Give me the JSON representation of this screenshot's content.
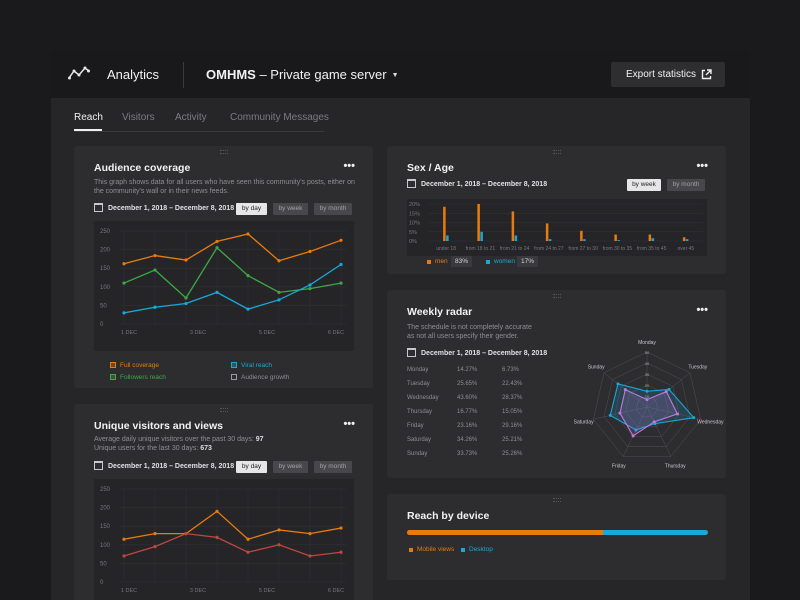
{
  "header": {
    "app_title": "Analytics",
    "project_name": "OMHMS",
    "project_suffix": " – Private game server",
    "export_label": "Export statistics"
  },
  "tabs": [
    {
      "label": "Reach",
      "active": true
    },
    {
      "label": "Visitors",
      "active": false
    },
    {
      "label": "Activity",
      "active": false
    },
    {
      "label": "Community Messages",
      "active": false
    }
  ],
  "colors": {
    "orange": "#e77b0e",
    "blue": "#1aa7d9",
    "green": "#3ea846",
    "light_blue": "#1aa7d9",
    "red": "#c0473e"
  },
  "audience": {
    "title": "Audience coverage",
    "menu_icon": "more-dots-icon",
    "description": "This graph shows data for all users who have seen this community's posts, either on the community's wall or in their news feeds.",
    "date_range": "December 1, 2018 – December 8, 2018",
    "periods": [
      "by day",
      "by week",
      "by month"
    ],
    "active_period": "by day",
    "legend": [
      "Full coverage",
      "Viral reach",
      "Followers reach",
      "Audience growth"
    ]
  },
  "unique": {
    "title": "Unique visitors and views",
    "desc_line1": "Average daily unique visitors over the past 30 days: ",
    "desc_val1": "97",
    "desc_line2": "Unique users for the last 30 days: ",
    "desc_val2": "673",
    "date_range": "December 1, 2018 – December 8, 2018",
    "periods": [
      "by day",
      "by week",
      "by month"
    ],
    "active_period": "by day"
  },
  "sexage": {
    "title": "Sex / Age",
    "date_range": "December 1, 2018 – December 8, 2018",
    "periods": [
      "by week",
      "by month"
    ],
    "active_period": "by week",
    "legend": [
      {
        "label": "men",
        "value": "83%"
      },
      {
        "label": "women",
        "value": "17%"
      }
    ]
  },
  "radar": {
    "title": "Weekly radar",
    "description": "The schedule is not completely accurate as not all users specify their gender.",
    "date_range": "December 1, 2018 – December 8, 2018",
    "rows": [
      {
        "day": "Monday",
        "a": "14.27%",
        "b": "6.73%"
      },
      {
        "day": "Tuesday",
        "a": "25.65%",
        "b": "22.43%"
      },
      {
        "day": "Wednesday",
        "a": "43.60%",
        "b": "28.37%"
      },
      {
        "day": "Thursday",
        "a": "16.77%",
        "b": "15.05%"
      },
      {
        "day": "Friday",
        "a": "23.16%",
        "b": "29.16%"
      },
      {
        "day": "Saturday",
        "a": "34.26%",
        "b": "25.21%"
      },
      {
        "day": "Sunday",
        "a": "33.73%",
        "b": "25.26%"
      }
    ]
  },
  "device": {
    "title": "Reach by device",
    "mobile_fraction": 0.65,
    "legend": [
      "Mobile views",
      "Desktop"
    ]
  },
  "chart_data": [
    {
      "type": "line",
      "title": "Audience coverage",
      "x_ticks": [
        "1 DEC",
        "3 DEC",
        "5 DEC",
        "6 DEC"
      ],
      "y_ticks": [
        0,
        50,
        100,
        150,
        200,
        250
      ],
      "ylim": [
        0,
        250
      ],
      "series": [
        {
          "name": "Full coverage",
          "color": "#e77b0e",
          "values": [
            162,
            184,
            172,
            222,
            242,
            170,
            195,
            225
          ]
        },
        {
          "name": "Followers reach",
          "color": "#3ea846",
          "values": [
            110,
            145,
            70,
            205,
            130,
            85,
            95,
            110
          ]
        },
        {
          "name": "Viral reach",
          "color": "#1aa7d9",
          "values": [
            30,
            45,
            55,
            85,
            40,
            65,
            105,
            160
          ]
        }
      ]
    },
    {
      "type": "line",
      "title": "Unique visitors and views",
      "x_ticks": [
        "1 DEC",
        "3 DEC",
        "5 DEC",
        "6 DEC"
      ],
      "y_ticks": [
        0,
        50,
        100,
        150,
        200,
        250
      ],
      "ylim": [
        0,
        250
      ],
      "series": [
        {
          "color": "#e77b0e",
          "values": [
            115,
            130,
            130,
            190,
            115,
            140,
            130,
            145
          ]
        },
        {
          "color": "#c0473e",
          "values": [
            70,
            95,
            130,
            120,
            80,
            100,
            70,
            80
          ]
        }
      ]
    },
    {
      "type": "bar",
      "title": "Sex / Age",
      "categories": [
        "under 18",
        "from 18 to 21",
        "from 21 to 24",
        "from 24 to 27",
        "from 27 to 30",
        "from 30 to 35",
        "from 35 to 45",
        "over 45"
      ],
      "y_ticks": [
        "0%",
        "5%",
        "10%",
        "15%",
        "20%"
      ],
      "ylim": [
        0,
        20
      ],
      "series": [
        {
          "name": "men",
          "color": "#e77b0e",
          "values": [
            18.5,
            20,
            16,
            9.5,
            5.5,
            3.5,
            3.5,
            2
          ]
        },
        {
          "name": "women",
          "color": "#1aa7d9",
          "values": [
            3,
            5,
            3,
            1,
            1,
            0.5,
            1.5,
            1
          ]
        }
      ]
    },
    {
      "type": "radar",
      "title": "Weekly radar",
      "categories": [
        "Monday",
        "Tuesday",
        "Wednesday",
        "Thursday",
        "Friday",
        "Saturday",
        "Sunday"
      ],
      "tick_labels": [
        "50",
        "40",
        "30",
        "20",
        "10"
      ],
      "rmax": 50,
      "series": [
        {
          "color": "#1aa7d9",
          "values": [
            14.27,
            25.65,
            43.6,
            16.77,
            23.16,
            34.26,
            33.73
          ]
        },
        {
          "color": "#c079e0",
          "values": [
            6.73,
            22.43,
            28.37,
            15.05,
            29.16,
            25.21,
            25.26
          ]
        }
      ]
    }
  ]
}
